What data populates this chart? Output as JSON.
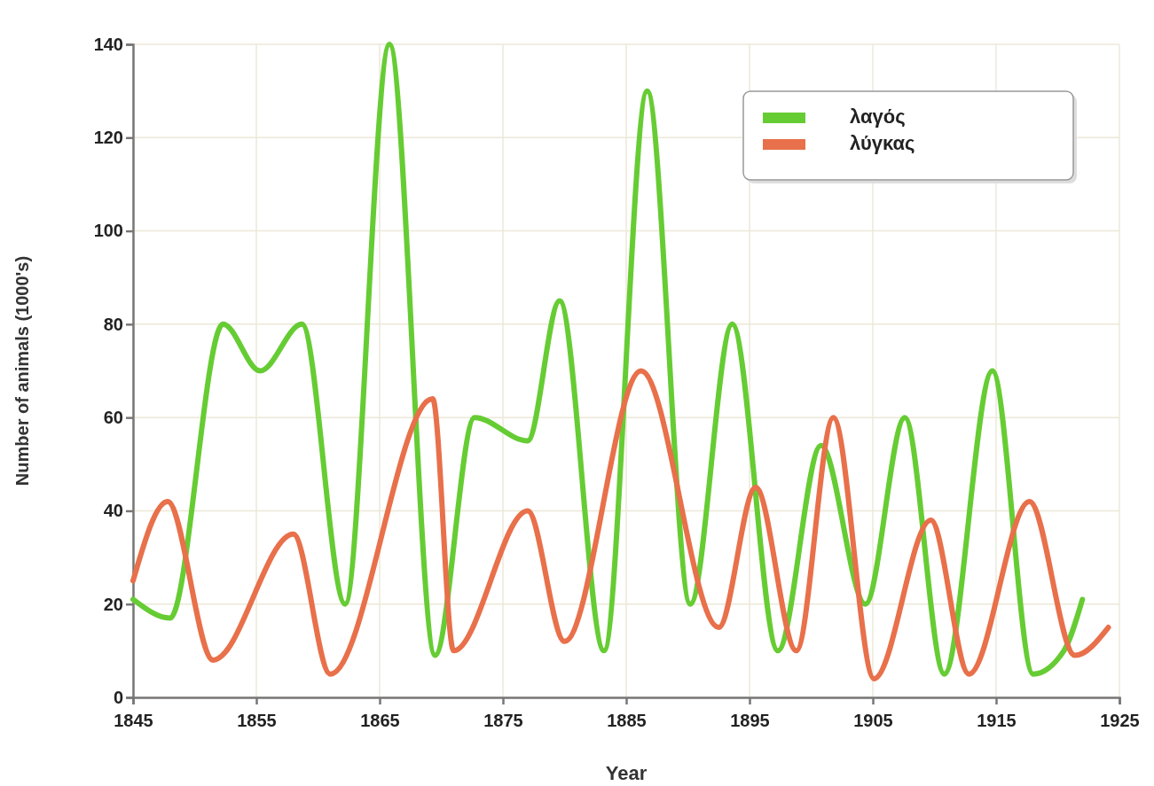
{
  "chart_data": {
    "type": "line",
    "xlabel": "Year",
    "ylabel": "Number of animals (1000's)",
    "xlim": [
      1845,
      1925
    ],
    "xticks": [
      1845,
      1855,
      1865,
      1875,
      1885,
      1895,
      1905,
      1915,
      1925
    ],
    "ylim": [
      0,
      140
    ],
    "yticks": [
      0,
      20,
      40,
      60,
      80,
      100,
      120,
      140
    ],
    "grid": true,
    "legend": "top right",
    "marker": "none",
    "line_style": "solid",
    "series": [
      {
        "name": "λαγός",
        "color": "#66cc33",
        "x": [
          1845,
          1848,
          1852.3,
          1855.3,
          1858.7,
          1862.2,
          1865.8,
          1869.5,
          1872.7,
          1877,
          1879.6,
          1883.2,
          1886.7,
          1890.2,
          1893.6,
          1897.3,
          1900.8,
          1904.4,
          1907.6,
          1910.8,
          1914.7,
          1918,
          1920.5,
          1922
        ],
        "values": [
          21,
          17,
          80,
          70,
          80,
          20,
          140,
          9,
          60,
          55,
          85,
          10,
          130,
          20,
          80,
          10,
          54,
          20,
          60,
          5,
          70,
          5,
          10,
          21
        ]
      },
      {
        "name": "λύγκας",
        "color": "#e8704a",
        "x": [
          1845,
          1847.8,
          1851.5,
          1858,
          1861,
          1869.3,
          1871,
          1877,
          1880,
          1886.2,
          1892.5,
          1895.5,
          1898.8,
          1901.8,
          1905.1,
          1909.7,
          1912.8,
          1917.7,
          1921.4,
          1924.1
        ],
        "values": [
          25,
          42,
          8,
          35,
          5,
          64,
          10,
          40,
          12,
          70,
          15,
          45,
          10,
          60,
          4,
          38,
          5,
          42,
          9,
          15
        ]
      }
    ]
  }
}
